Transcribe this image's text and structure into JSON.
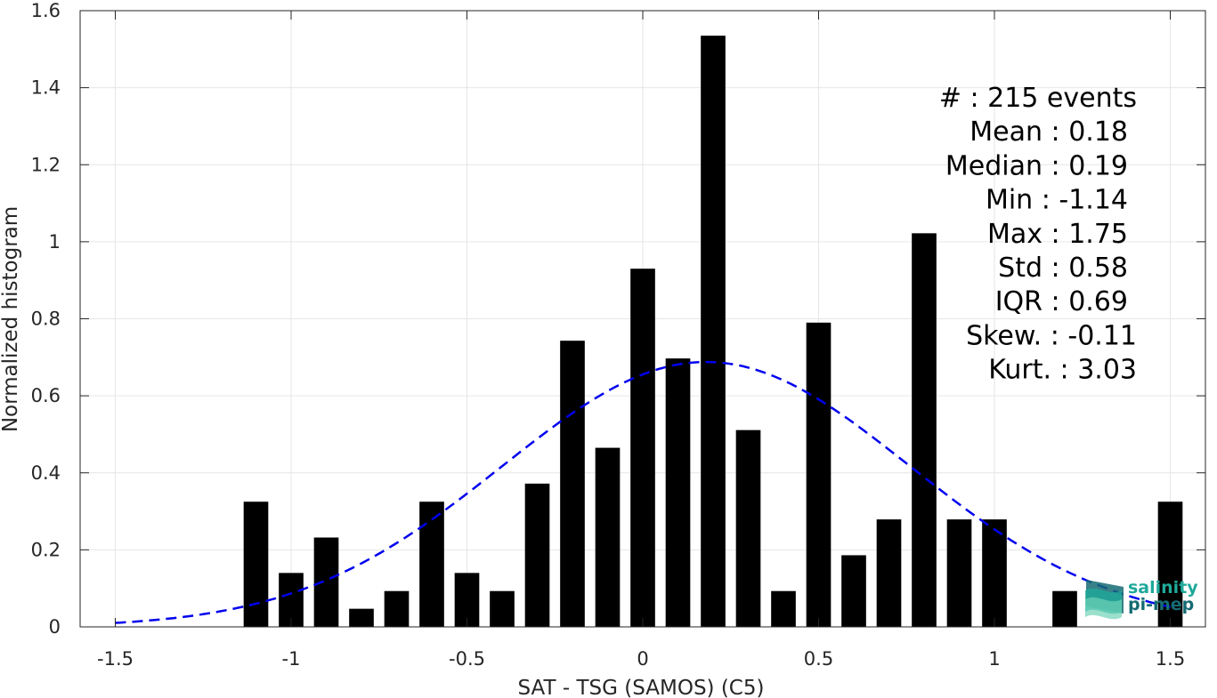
{
  "chart_data": {
    "type": "bar",
    "xlabel": "SAT - TSG (SAMOS) (C5)",
    "ylabel": "Normalized histogram",
    "xlim": [
      -1.6,
      1.6
    ],
    "ylim": [
      0,
      1.6
    ],
    "xticks": [
      -1.5,
      -1,
      -0.5,
      0,
      0.5,
      1,
      1.5
    ],
    "xtick_labels": [
      "-1.5",
      "-1",
      "-0.5",
      "0",
      "0.5",
      "1",
      "1.5"
    ],
    "yticks": [
      0,
      0.2,
      0.4,
      0.6,
      0.8,
      1,
      1.2,
      1.4,
      1.6
    ],
    "ytick_labels": [
      "0",
      "0.2",
      "0.4",
      "0.6",
      "0.8",
      "1",
      "1.2",
      "1.4",
      "1.6"
    ],
    "grid": true,
    "bar_width": 0.07,
    "bar_color": "#000000",
    "bars": {
      "x": [
        -1.1,
        -1.0,
        -0.9,
        -0.8,
        -0.7,
        -0.6,
        -0.5,
        -0.4,
        -0.3,
        -0.2,
        -0.1,
        0.0,
        0.1,
        0.2,
        0.3,
        0.4,
        0.5,
        0.6,
        0.7,
        0.8,
        0.9,
        1.0,
        1.2,
        1.5
      ],
      "values": [
        0.325,
        0.14,
        0.232,
        0.047,
        0.093,
        0.325,
        0.14,
        0.093,
        0.372,
        0.743,
        0.465,
        0.93,
        0.697,
        1.535,
        0.511,
        0.093,
        0.79,
        0.186,
        0.279,
        1.022,
        0.279,
        0.279,
        0.093,
        0.325
      ]
    },
    "fit_curve": {
      "style": "dashed",
      "color": "#0000ee",
      "mean": 0.18,
      "std": 0.58,
      "x_range": [
        -1.5,
        1.5
      ]
    },
    "stats_box": [
      {
        "label": "#",
        "value": ": 215 events"
      },
      {
        "label": "Mean",
        "value": ": 0.18"
      },
      {
        "label": "Median",
        "value": ": 0.19"
      },
      {
        "label": "Min",
        "value": ": -1.14"
      },
      {
        "label": "Max",
        "value": ": 1.75"
      },
      {
        "label": "Std",
        "value": ": 0.58"
      },
      {
        "label": "IQR",
        "value": ": 0.69"
      },
      {
        "label": "Skew.",
        "value": ": -0.11"
      },
      {
        "label": "Kurt.",
        "value": ": 3.03"
      }
    ]
  },
  "logo": {
    "line1": "salinity",
    "line2": "pi-mep",
    "color1": "#1fa99a",
    "color2": "#156b73"
  }
}
